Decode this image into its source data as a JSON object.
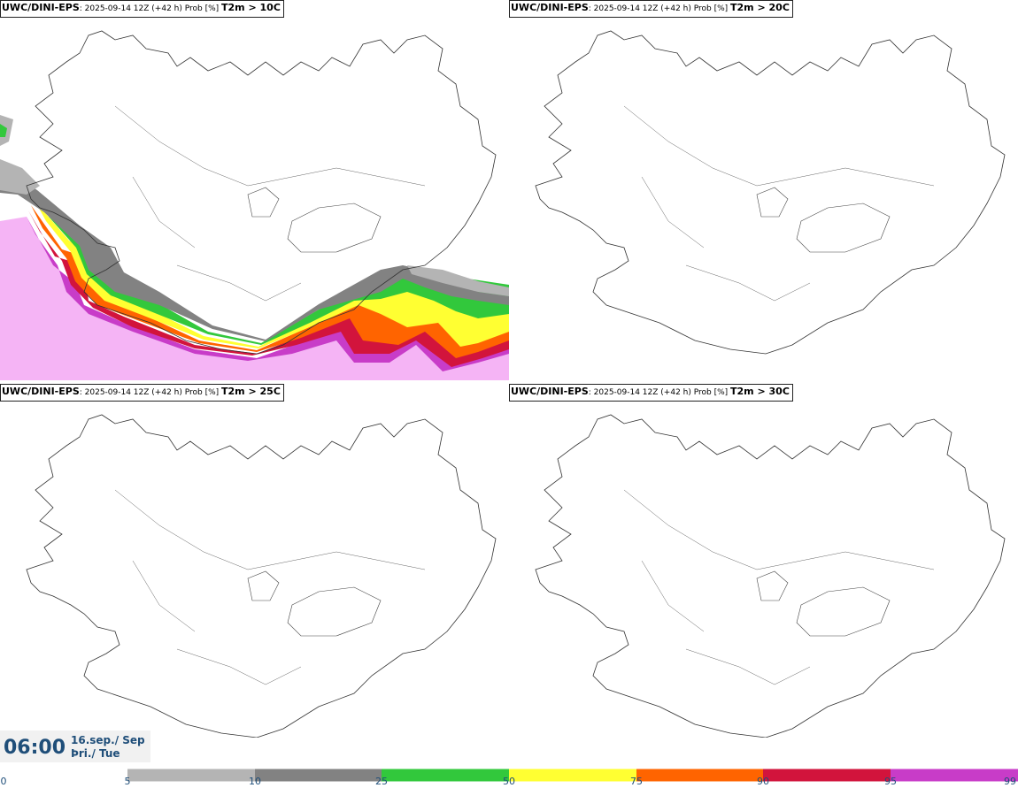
{
  "panels": [
    {
      "model": "UWC/DINI-EPS",
      "meta": ": 2025-09-14 12Z (+42 h) Prob [%] ",
      "variable": "T2m > 10C"
    },
    {
      "model": "UWC/DINI-EPS",
      "meta": ": 2025-09-14 12Z (+42 h) Prob [%] ",
      "variable": "T2m > 20C"
    },
    {
      "model": "UWC/DINI-EPS",
      "meta": ": 2025-09-14 12Z (+42 h) Prob [%] ",
      "variable": "T2m > 25C"
    },
    {
      "model": "UWC/DINI-EPS",
      "meta": ": 2025-09-14 12Z (+42 h) Prob [%] ",
      "variable": "T2m > 30C"
    }
  ],
  "valid_time": {
    "time": "06:00",
    "date_line1": "16.sep./ Sep",
    "date_line2": "Þri./ Tue"
  },
  "colorbar": {
    "ticks": [
      "0",
      "5",
      "10",
      "25",
      "50",
      "75",
      "90",
      "95",
      "99"
    ],
    "colors": [
      "#ffffff",
      "#b4b4b4",
      "#828282",
      "#32c83c",
      "#ffff32",
      "#ff6400",
      "#d2143c",
      "#c83cc8",
      "#f5b4f5"
    ]
  }
}
